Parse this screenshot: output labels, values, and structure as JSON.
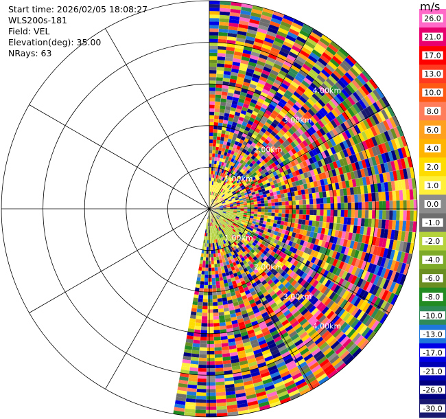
{
  "header": {
    "start_time": "Start time: 2026/02/05 18:08:27",
    "instrument": "WLS200s-181",
    "field": "Field: VEL",
    "elevation": "Elevation(deg): 35.00",
    "nrays": "NRays: 63"
  },
  "colorbar": {
    "unit": "m/s",
    "levels": [
      {
        "label": "26.0",
        "color": "#ff69c8"
      },
      {
        "label": "21.0",
        "color": "#e8006e"
      },
      {
        "label": "17.0",
        "color": "#ff0000"
      },
      {
        "label": "13.0",
        "color": "#ff3a1e"
      },
      {
        "label": "10.0",
        "color": "#ff5a14"
      },
      {
        "label": "8.0",
        "color": "#ff7d5a"
      },
      {
        "label": "6.0",
        "color": "#ffa01e"
      },
      {
        "label": "4.0",
        "color": "#ffb400"
      },
      {
        "label": "2.0",
        "color": "#ffdc00"
      },
      {
        "label": "1.0",
        "color": "#fff03c"
      },
      {
        "label": "0.0",
        "color": "#8c8c8c"
      },
      {
        "label": "-1.0",
        "color": "#6e6e6e"
      },
      {
        "label": "-2.0",
        "color": "#b4d23c"
      },
      {
        "label": "-4.0",
        "color": "#7daa28"
      },
      {
        "label": "-6.0",
        "color": "#6b8e23"
      },
      {
        "label": "-8.0",
        "color": "#228b22"
      },
      {
        "label": "-10.0",
        "color": "#2e8b57"
      },
      {
        "label": "-13.0",
        "color": "#1e78dc"
      },
      {
        "label": "-17.0",
        "color": "#0000e6"
      },
      {
        "label": "-21.0",
        "color": "#0000b4"
      },
      {
        "label": "-26.0",
        "color": "#000080"
      },
      {
        "label": "-30.0",
        "color": "#191970"
      }
    ]
  },
  "chart_data": {
    "type": "heatmap",
    "projection": "polar PPI",
    "grid": true,
    "range_rings": [
      "1.00km",
      "2.00km",
      "3.00km",
      "4.00km"
    ],
    "range_ring_km": [
      1,
      2,
      3,
      4
    ],
    "max_range_km": 5.0,
    "azimuth_spokes_deg": [
      0,
      30,
      60,
      90,
      120,
      150,
      180,
      210,
      240,
      270,
      300,
      330
    ],
    "sector_azimuth_deg": [
      0,
      190
    ],
    "near_range_positive": {
      "azimuth_deg": [
        0,
        75
      ],
      "range_km": [
        0,
        0.6
      ],
      "value_ms": 1.0
    },
    "near_range_negative": {
      "azimuth_deg": [
        90,
        190
      ],
      "range_km": [
        0,
        0.8
      ],
      "value_ms": -2.0
    },
    "colorbar_range_ms": [
      -30.0,
      26.0
    ]
  }
}
